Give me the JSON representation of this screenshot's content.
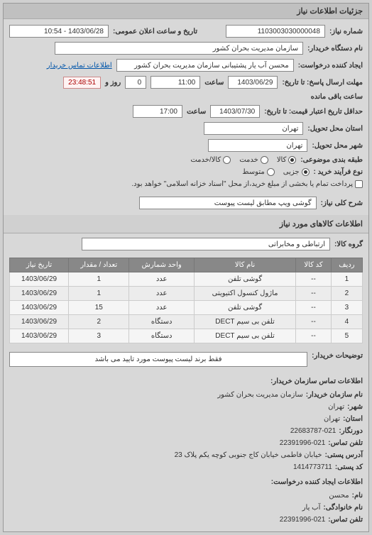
{
  "header": {
    "title": "جزئیات اطلاعات نیاز"
  },
  "form": {
    "req_no_label": "شماره نیاز:",
    "req_no": "1103003030000048",
    "pub_date_label": "تاریخ و ساعت اعلان عمومی:",
    "pub_date": "1403/06/28 - 10:54",
    "buyer_label": "نام دستگاه خریدار:",
    "buyer": "سازمان مدیریت بحران کشور",
    "creator_label": "ایجاد کننده درخواست:",
    "creator": "محسن آب یار پشتیبانی سازمان مدیریت بحران کشور",
    "contact_link": "اطلاعات تماس خریدار",
    "deadline_label": "مهلت ارسال پاسخ: تا تاریخ:",
    "deadline_date": "1403/06/29",
    "time_label": "ساعت",
    "deadline_time": "11:00",
    "days_remain": "0",
    "days_text": "روز و",
    "countdown": "23:48:51",
    "remain_text": "ساعت باقی مانده",
    "validity_label": "حداقل تاریخ اعتبار قیمت: تا تاریخ:",
    "validity_date": "1403/07/30",
    "validity_time": "17:00",
    "province_label": "استان محل تحویل:",
    "province": "تهران",
    "city_label": "شهر محل تحویل:",
    "city": "تهران",
    "class_label": "طبقه بندی موضوعی:",
    "class_opts": {
      "goods": "کالا",
      "service": "خدمت",
      "both": "کالا/خدمت"
    },
    "class_selected": "goods",
    "process_label": "نوع فرآیند خرید :",
    "process_opts": {
      "small": "جزیی",
      "medium": "متوسط"
    },
    "process_selected": "small",
    "process_note": "پرداخت تمام یا بخشی از مبلغ خرید،از محل \"اسناد خزانه اسلامی\" خواهد بود.",
    "need_title_label": "شرح کلی نیاز:",
    "need_title": "گوشی ویپ مطابق لیست پیوست"
  },
  "goods": {
    "section_title": "اطلاعات کالاهای مورد نیاز",
    "group_label": "گروه کالا:",
    "group": "ارتباطی و مخابراتی",
    "cols": {
      "row": "ردیف",
      "code": "کد کالا",
      "name": "نام کالا",
      "unit": "واحد شمارش",
      "qty": "تعداد / مقدار",
      "date": "تاریخ نیاز"
    },
    "rows": [
      {
        "n": "1",
        "code": "--",
        "name": "گوشی تلفن",
        "unit": "عدد",
        "qty": "1",
        "date": "1403/06/29"
      },
      {
        "n": "2",
        "code": "--",
        "name": "ماژول کنسول اکتیویتی",
        "unit": "عدد",
        "qty": "1",
        "date": "1403/06/29"
      },
      {
        "n": "3",
        "code": "--",
        "name": "گوشی تلفن",
        "unit": "عدد",
        "qty": "15",
        "date": "1403/06/29"
      },
      {
        "n": "4",
        "code": "--",
        "name": "تلفن بی سیم DECT",
        "unit": "دستگاه",
        "qty": "2",
        "date": "1403/06/29"
      },
      {
        "n": "5",
        "code": "--",
        "name": "تلفن بی سیم DECT",
        "unit": "دستگاه",
        "qty": "3",
        "date": "1403/06/29"
      }
    ]
  },
  "buyer_note": {
    "label": "توضیحات خریدار:",
    "text": "فقط برند لیست پیوست مورد تایید می باشد"
  },
  "contact": {
    "section_title": "اطلاعات تماس سازمان خریدار:",
    "org_label": "نام سازمان خریدار:",
    "org": "سازمان مدیریت بحران کشور",
    "city_label": "شهر:",
    "city": "تهران",
    "province_label": "استان:",
    "province": "تهران",
    "fax_label": "دورنگار:",
    "fax": "22683787-021",
    "phone_label": "تلفن تماس:",
    "phone": "22391996-021",
    "addr_label": "آدرس پستی:",
    "addr": "خیابان فاطمی خیابان کاج جنوبی کوچه یکم پلاک 23",
    "post_label": "کد پستی:",
    "post": "1414773711",
    "creator_section": "اطلاعات ایجاد کننده درخواست:",
    "fname_label": "نام:",
    "fname": "محسن",
    "lname_label": "نام خانوادگی:",
    "lname": "آب یار",
    "cphone_label": "تلفن تماس:",
    "cphone": "22391996-021"
  }
}
